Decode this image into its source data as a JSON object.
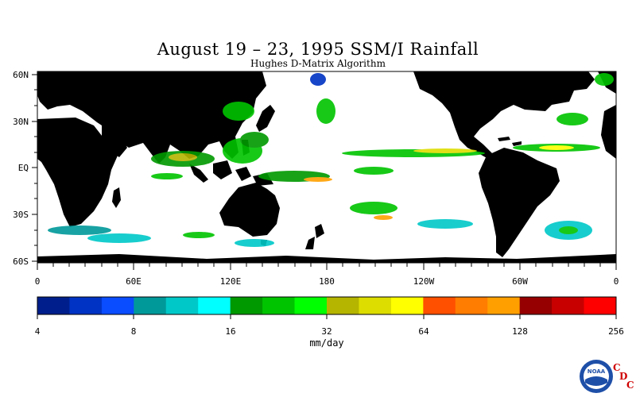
{
  "map": {
    "title": "August 19 – 23, 1995 SSM/I Rainfall",
    "subtitle": "Hughes D-Matrix Algorithm",
    "lat_labels": [
      "60N",
      "30N",
      "EQ",
      "30S",
      "60S"
    ],
    "lon_labels": [
      "0",
      "60E",
      "120E",
      "180",
      "120W",
      "60W",
      "0"
    ]
  },
  "colorbar": {
    "tick_labels": [
      "4",
      "8",
      "16",
      "32",
      "64",
      "128",
      "256"
    ],
    "units": "mm/day",
    "colors": [
      "#001f8c",
      "#0033c4",
      "#0a4cff",
      "#00999a",
      "#00c8c8",
      "#00ffff",
      "#009900",
      "#00c400",
      "#00ff00",
      "#b5b500",
      "#dddd00",
      "#ffff00",
      "#ff5000",
      "#ff7d00",
      "#ffa000",
      "#960000",
      "#c80000",
      "#ff0000"
    ]
  },
  "logo": {
    "text": "NOAA",
    "corner_letters": [
      "C",
      "D",
      "C"
    ]
  }
}
